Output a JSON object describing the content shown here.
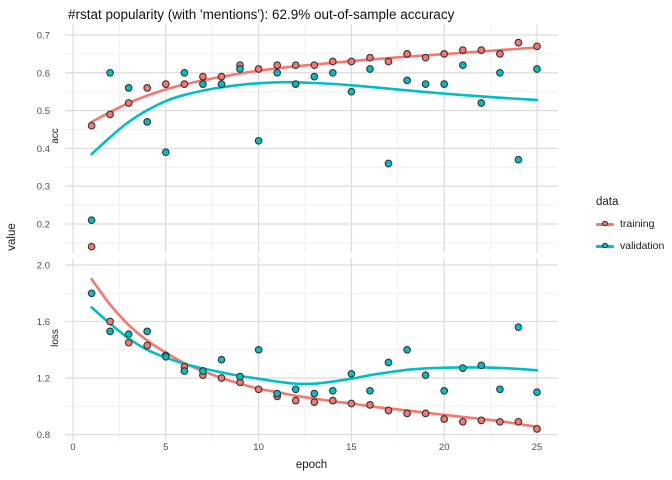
{
  "title": "#rstat popularity (with 'mentions'): 62.9% out-of-sample accuracy",
  "legend": {
    "title": "data",
    "items": [
      {
        "label": "training",
        "color": "#F8766D"
      },
      {
        "label": "validation",
        "color": "#00BFC4"
      }
    ]
  },
  "axes": {
    "x_label": "epoch",
    "y_label": "value",
    "x_tick_labels": [
      "0",
      "5",
      "10",
      "15",
      "20",
      "25"
    ]
  },
  "colors": {
    "training": "#F8766D",
    "validation": "#00BFC4",
    "point_stroke": "#333333",
    "grid_major": "#DEDEDE",
    "grid_minor": "#F1F1F1",
    "tick_text": "#4D4D4D",
    "label_text": "#1A1A1A",
    "panel_bg": "#FFFFFF"
  },
  "chart_data": {
    "type": "scatter",
    "title": "#rstat popularity (with 'mentions'): 62.9% out-of-sample accuracy",
    "xlabel": "epoch",
    "ylabel": "value",
    "x_range": [
      0,
      25
    ],
    "grid": true,
    "legend_title": "data",
    "legend_position": "right",
    "facets": [
      {
        "name": "acc",
        "y_tick_labels": [
          "0.7",
          "0.6",
          "0.5",
          "0.4",
          "0.3",
          "0.2"
        ],
        "ylim": [
          0.13,
          0.72
        ],
        "series": [
          {
            "name": "training",
            "points": [
              [
                1,
                0.46
              ],
              [
                1,
                0.14
              ],
              [
                2,
                0.49
              ],
              [
                3,
                0.52
              ],
              [
                4,
                0.56
              ],
              [
                5,
                0.57
              ],
              [
                6,
                0.57
              ],
              [
                7,
                0.59
              ],
              [
                8,
                0.59
              ],
              [
                9,
                0.62
              ],
              [
                10,
                0.61
              ],
              [
                11,
                0.62
              ],
              [
                12,
                0.62
              ],
              [
                13,
                0.62
              ],
              [
                14,
                0.63
              ],
              [
                15,
                0.63
              ],
              [
                16,
                0.64
              ],
              [
                17,
                0.63
              ],
              [
                18,
                0.65
              ],
              [
                19,
                0.64
              ],
              [
                20,
                0.65
              ],
              [
                21,
                0.66
              ],
              [
                22,
                0.66
              ],
              [
                23,
                0.65
              ],
              [
                24,
                0.68
              ],
              [
                25,
                0.67
              ]
            ],
            "smooth": [
              [
                1,
                0.47
              ],
              [
                3,
                0.52
              ],
              [
                5,
                0.556
              ],
              [
                7,
                0.58
              ],
              [
                9,
                0.598
              ],
              [
                11,
                0.612
              ],
              [
                13,
                0.622
              ],
              [
                15,
                0.631
              ],
              [
                17,
                0.639
              ],
              [
                19,
                0.646
              ],
              [
                21,
                0.653
              ],
              [
                23,
                0.66
              ],
              [
                25,
                0.667
              ]
            ]
          },
          {
            "name": "validation",
            "points": [
              [
                1,
                0.21
              ],
              [
                2,
                0.6
              ],
              [
                3,
                0.56
              ],
              [
                4,
                0.47
              ],
              [
                5,
                0.39
              ],
              [
                6,
                0.6
              ],
              [
                7,
                0.57
              ],
              [
                8,
                0.57
              ],
              [
                9,
                0.61
              ],
              [
                10,
                0.42
              ],
              [
                11,
                0.6
              ],
              [
                12,
                0.57
              ],
              [
                13,
                0.59
              ],
              [
                14,
                0.6
              ],
              [
                15,
                0.55
              ],
              [
                16,
                0.61
              ],
              [
                17,
                0.36
              ],
              [
                18,
                0.58
              ],
              [
                19,
                0.57
              ],
              [
                20,
                0.57
              ],
              [
                21,
                0.62
              ],
              [
                22,
                0.52
              ],
              [
                23,
                0.6
              ],
              [
                24,
                0.37
              ],
              [
                25,
                0.61
              ]
            ],
            "smooth": [
              [
                1,
                0.385
              ],
              [
                3,
                0.47
              ],
              [
                5,
                0.525
              ],
              [
                7,
                0.553
              ],
              [
                9,
                0.568
              ],
              [
                11,
                0.575
              ],
              [
                13,
                0.573
              ],
              [
                15,
                0.567
              ],
              [
                17,
                0.558
              ],
              [
                19,
                0.549
              ],
              [
                21,
                0.541
              ],
              [
                23,
                0.534
              ],
              [
                25,
                0.528
              ]
            ]
          }
        ]
      },
      {
        "name": "loss",
        "y_tick_labels": [
          "2.0",
          "1.6",
          "1.2",
          "0.8"
        ],
        "ylim": [
          0.8,
          2.0
        ],
        "series": [
          {
            "name": "training",
            "points": [
              [
                2,
                1.6
              ],
              [
                3,
                1.45
              ],
              [
                4,
                1.43
              ],
              [
                5,
                1.36
              ],
              [
                6,
                1.28
              ],
              [
                7,
                1.22
              ],
              [
                8,
                1.2
              ],
              [
                9,
                1.17
              ],
              [
                10,
                1.12
              ],
              [
                11,
                1.07
              ],
              [
                12,
                1.04
              ],
              [
                13,
                1.03
              ],
              [
                14,
                1.04
              ],
              [
                15,
                1.02
              ],
              [
                16,
                1.01
              ],
              [
                17,
                0.97
              ],
              [
                18,
                0.95
              ],
              [
                19,
                0.95
              ],
              [
                20,
                0.91
              ],
              [
                21,
                0.89
              ],
              [
                22,
                0.9
              ],
              [
                23,
                0.89
              ],
              [
                24,
                0.89
              ],
              [
                25,
                0.84
              ]
            ],
            "smooth": [
              [
                1,
                1.9
              ],
              [
                2,
                1.72
              ],
              [
                3,
                1.575
              ],
              [
                4,
                1.465
              ],
              [
                5,
                1.38
              ],
              [
                6,
                1.305
              ],
              [
                7,
                1.25
              ],
              [
                8,
                1.2
              ],
              [
                9,
                1.16
              ],
              [
                10,
                1.125
              ],
              [
                11,
                1.1
              ],
              [
                12,
                1.075
              ],
              [
                13,
                1.055
              ],
              [
                14,
                1.035
              ],
              [
                15,
                1.02
              ],
              [
                16,
                1.0
              ],
              [
                17,
                0.985
              ],
              [
                18,
                0.97
              ],
              [
                19,
                0.955
              ],
              [
                20,
                0.94
              ],
              [
                21,
                0.925
              ],
              [
                22,
                0.91
              ],
              [
                23,
                0.895
              ],
              [
                24,
                0.875
              ],
              [
                25,
                0.855
              ]
            ]
          },
          {
            "name": "validation",
            "points": [
              [
                1,
                1.8
              ],
              [
                2,
                1.53
              ],
              [
                3,
                1.51
              ],
              [
                4,
                1.53
              ],
              [
                5,
                1.35
              ],
              [
                6,
                1.25
              ],
              [
                7,
                1.25
              ],
              [
                8,
                1.33
              ],
              [
                9,
                1.21
              ],
              [
                10,
                1.4
              ],
              [
                11,
                1.09
              ],
              [
                12,
                1.12
              ],
              [
                13,
                1.09
              ],
              [
                14,
                1.11
              ],
              [
                15,
                1.23
              ],
              [
                16,
                1.11
              ],
              [
                17,
                1.31
              ],
              [
                18,
                1.4
              ],
              [
                19,
                1.22
              ],
              [
                20,
                1.11
              ],
              [
                21,
                1.27
              ],
              [
                22,
                1.29
              ],
              [
                23,
                1.12
              ],
              [
                24,
                1.56
              ],
              [
                25,
                1.1
              ]
            ],
            "smooth": [
              [
                1,
                1.7
              ],
              [
                2,
                1.585
              ],
              [
                3,
                1.48
              ],
              [
                4,
                1.4
              ],
              [
                5,
                1.345
              ],
              [
                6,
                1.3
              ],
              [
                7,
                1.268
              ],
              [
                8,
                1.24
              ],
              [
                9,
                1.215
              ],
              [
                10,
                1.195
              ],
              [
                11,
                1.175
              ],
              [
                12,
                1.16
              ],
              [
                13,
                1.16
              ],
              [
                14,
                1.175
              ],
              [
                15,
                1.195
              ],
              [
                16,
                1.22
              ],
              [
                17,
                1.24
              ],
              [
                18,
                1.258
              ],
              [
                19,
                1.268
              ],
              [
                20,
                1.273
              ],
              [
                21,
                1.275
              ],
              [
                22,
                1.275
              ],
              [
                23,
                1.272
              ],
              [
                24,
                1.265
              ],
              [
                25,
                1.255
              ]
            ]
          }
        ]
      }
    ]
  }
}
